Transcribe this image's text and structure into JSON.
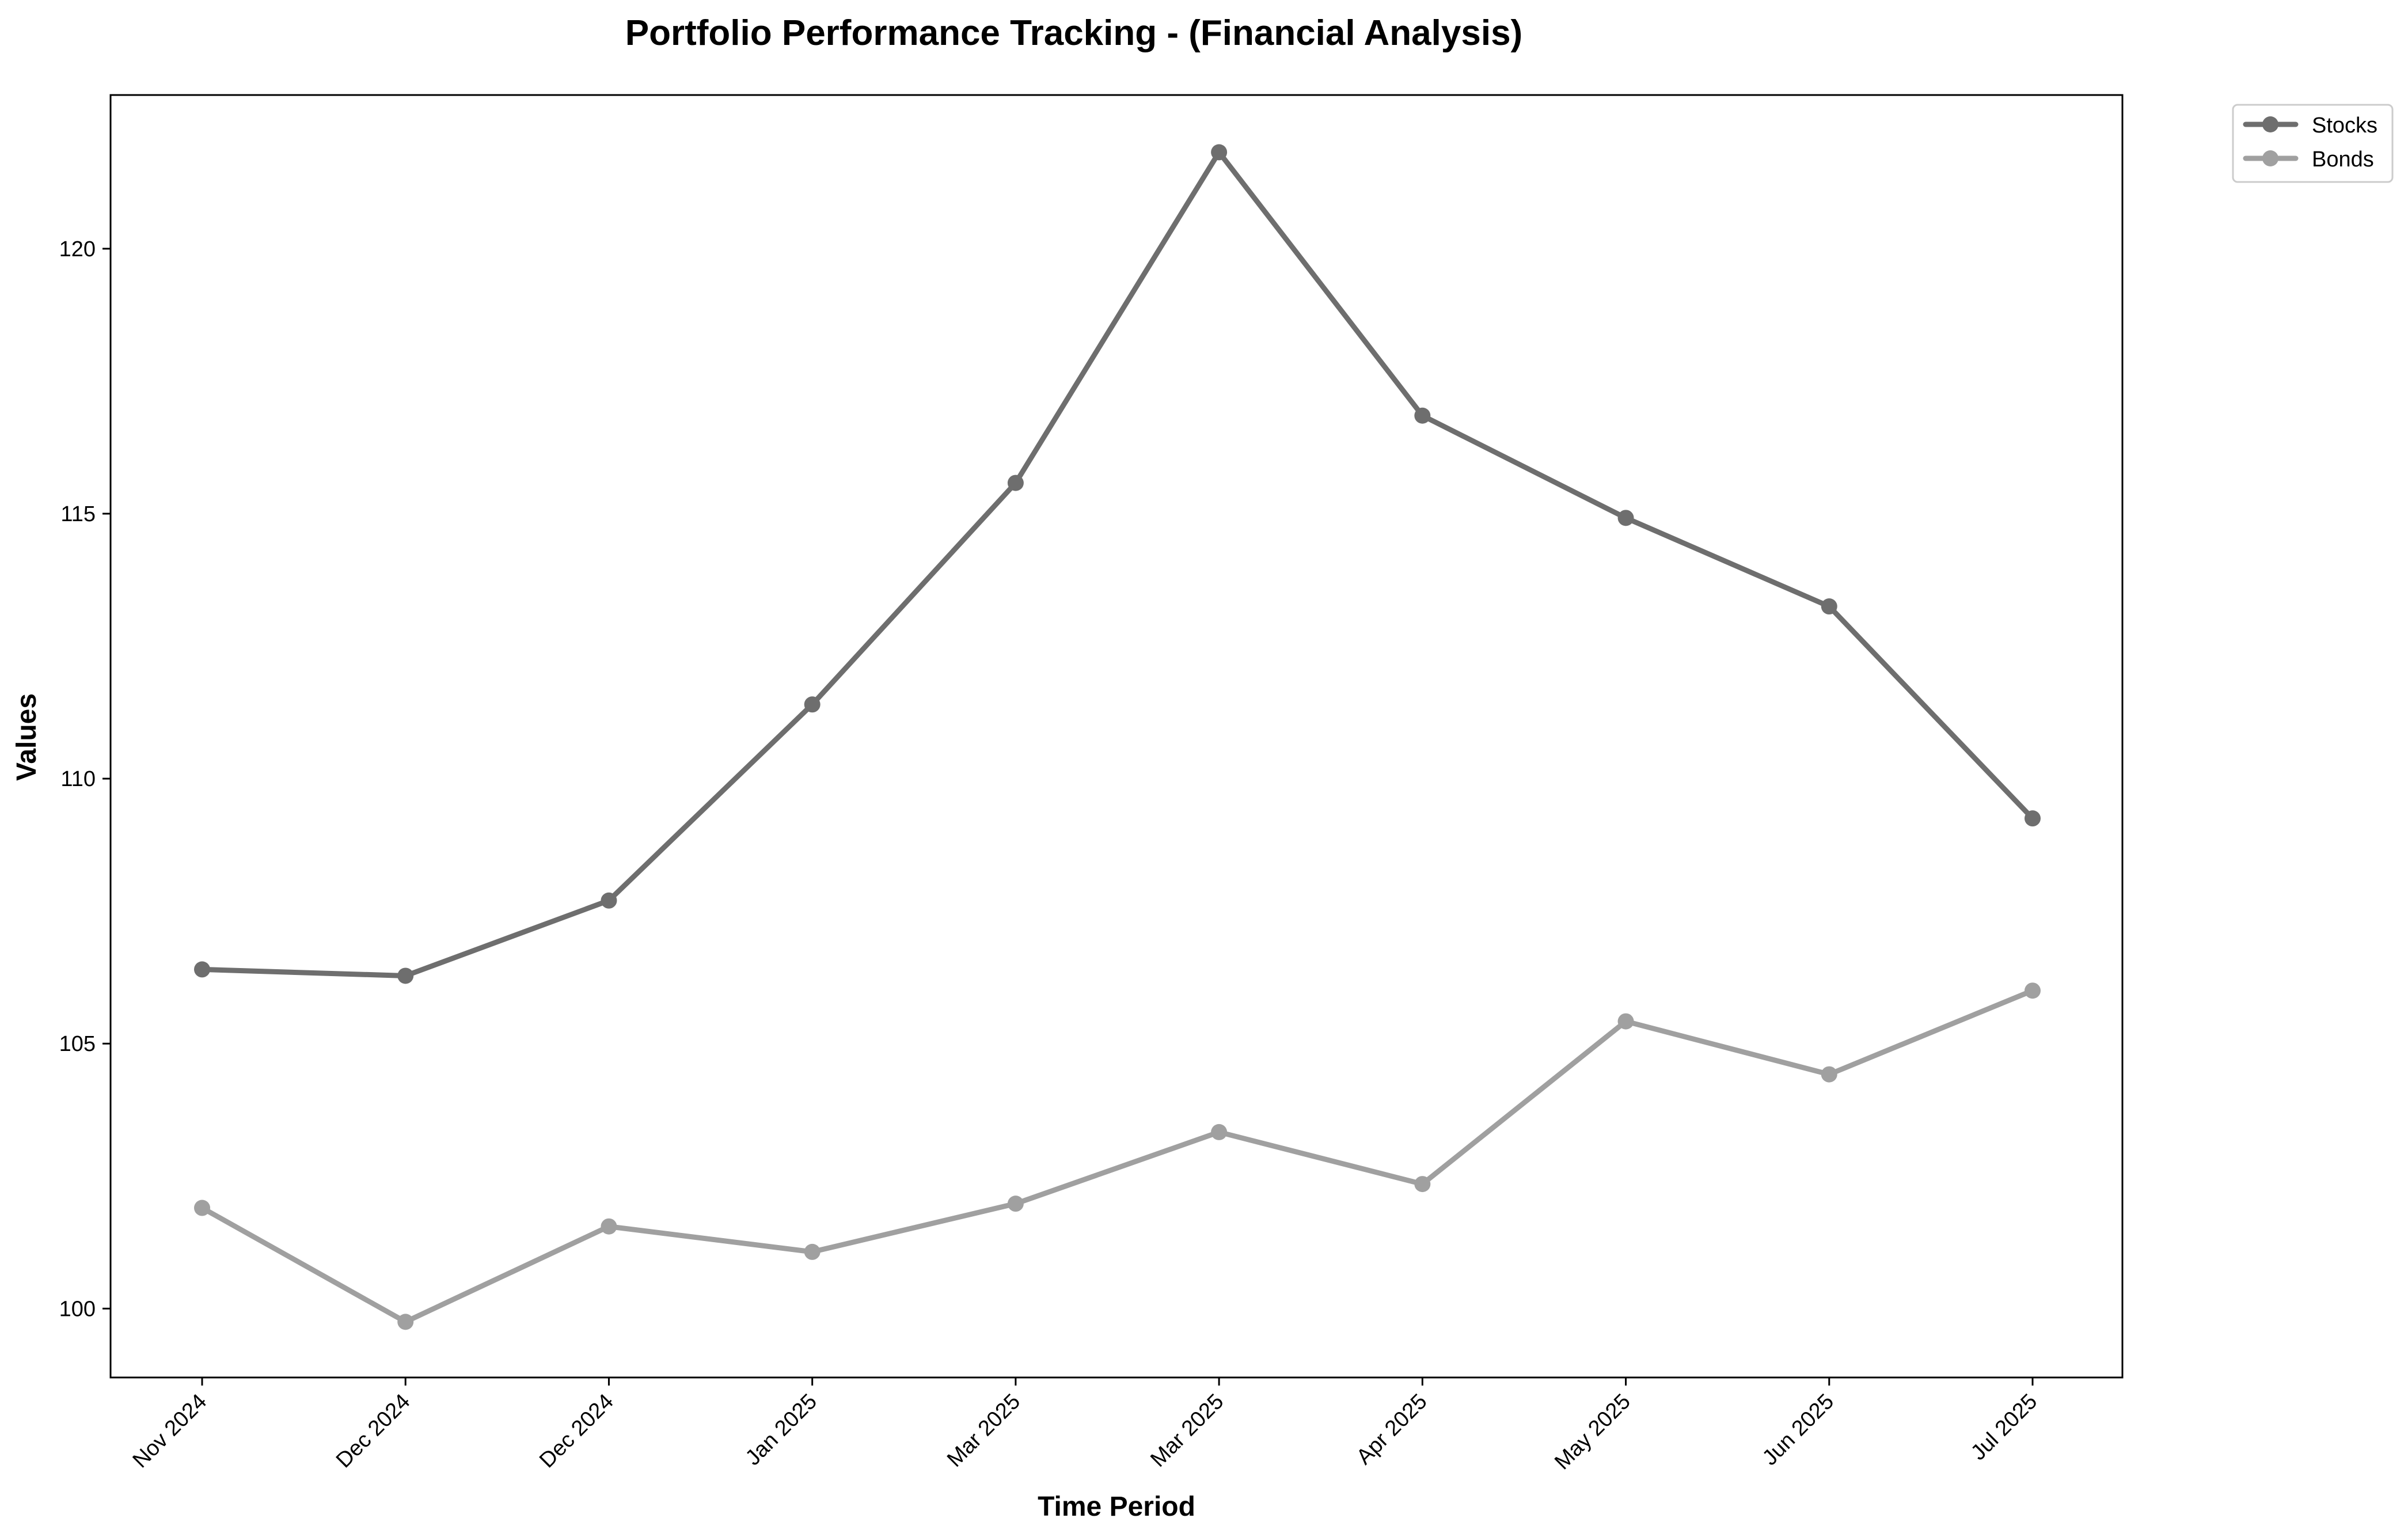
{
  "chart_data": {
    "type": "line",
    "title": "Portfolio Performance Tracking - (Financial Analysis)",
    "xlabel": "Time Period",
    "ylabel": "Values",
    "categories": [
      "Nov 2024",
      "Dec 2024",
      "Dec 2024",
      "Jan 2025",
      "Mar 2025",
      "Mar 2025",
      "Apr 2025",
      "May 2025",
      "Jun 2025",
      "Jul 2025"
    ],
    "series": [
      {
        "name": "Stocks",
        "color": "#6e6e6e",
        "values": [
          106.4,
          106.28,
          107.7,
          111.4,
          115.58,
          121.82,
          116.85,
          114.92,
          113.25,
          109.25
        ]
      },
      {
        "name": "Bonds",
        "color": "#a0a0a0",
        "values": [
          101.9,
          99.75,
          101.55,
          101.07,
          101.98,
          103.33,
          102.35,
          105.42,
          104.42,
          106.0
        ]
      }
    ],
    "ylim": [
      98.7,
      122.9
    ],
    "yticks": [
      100,
      105,
      110,
      115,
      120
    ],
    "grid": false,
    "legend_position": "outside-top-right"
  }
}
